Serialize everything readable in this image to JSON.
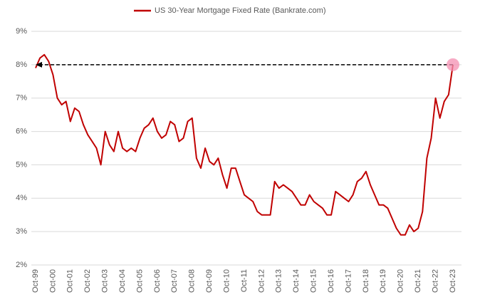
{
  "chart_data": {
    "type": "line",
    "categories": [
      "Oct-99",
      null,
      null,
      null,
      "Oct-00",
      null,
      null,
      null,
      "Oct-01",
      null,
      null,
      null,
      "Oct-02",
      null,
      null,
      null,
      "Oct-03",
      null,
      null,
      null,
      "Oct-04",
      null,
      null,
      null,
      "Oct-05",
      null,
      null,
      null,
      "Oct-06",
      null,
      null,
      null,
      "Oct-07",
      null,
      null,
      null,
      "Oct-08",
      null,
      null,
      null,
      "Oct-09",
      null,
      null,
      null,
      "Oct-10",
      null,
      null,
      null,
      "Oct-11",
      null,
      null,
      null,
      "Oct-12",
      null,
      null,
      null,
      "Oct-13",
      null,
      null,
      null,
      "Oct-14",
      null,
      null,
      null,
      "Oct-15",
      null,
      null,
      null,
      "Oct-16",
      null,
      null,
      null,
      "Oct-17",
      null,
      null,
      null,
      "Oct-18",
      null,
      null,
      null,
      "Oct-19",
      null,
      null,
      null,
      "Oct-20",
      null,
      null,
      null,
      "Oct-21",
      null,
      null,
      null,
      "Oct-22",
      null,
      null,
      null,
      "Oct-23"
    ],
    "series": [
      {
        "name": "US 30-Year Mortgage Fixed Rate (Bankrate.com)",
        "color": "#c00000",
        "values": [
          7.9,
          8.2,
          8.3,
          8.1,
          7.7,
          7.0,
          6.8,
          6.9,
          6.3,
          6.7,
          6.6,
          6.2,
          5.9,
          5.7,
          5.5,
          5.0,
          6.0,
          5.6,
          5.4,
          6.0,
          5.5,
          5.4,
          5.5,
          5.4,
          5.8,
          6.1,
          6.2,
          6.4,
          6.0,
          5.8,
          5.9,
          6.3,
          6.2,
          5.7,
          5.8,
          6.3,
          6.4,
          5.2,
          4.9,
          5.5,
          5.1,
          5.0,
          5.2,
          4.7,
          4.3,
          4.9,
          4.9,
          4.5,
          4.1,
          4.0,
          3.9,
          3.6,
          3.5,
          3.5,
          3.5,
          4.5,
          4.3,
          4.4,
          4.3,
          4.2,
          4.0,
          3.8,
          3.8,
          4.1,
          3.9,
          3.8,
          3.7,
          3.5,
          3.5,
          4.2,
          4.1,
          4.0,
          3.9,
          4.1,
          4.5,
          4.6,
          4.8,
          4.4,
          4.1,
          3.8,
          3.8,
          3.7,
          3.4,
          3.1,
          2.9,
          2.9,
          3.2,
          3.0,
          3.1,
          3.6,
          5.2,
          5.8,
          7.0,
          6.4,
          6.9,
          7.1,
          8.0
        ]
      }
    ],
    "ylim": [
      2,
      9
    ],
    "yticks": [
      {
        "value": 2,
        "label": "2%"
      },
      {
        "value": 3,
        "label": "3%"
      },
      {
        "value": 4,
        "label": "4%"
      },
      {
        "value": 5,
        "label": "5%"
      },
      {
        "value": 6,
        "label": "6%"
      },
      {
        "value": 7,
        "label": "7%"
      },
      {
        "value": 8,
        "label": "8%"
      },
      {
        "value": 9,
        "label": "9%"
      }
    ],
    "grid": true,
    "legend": "top",
    "reference_value": 8
  }
}
